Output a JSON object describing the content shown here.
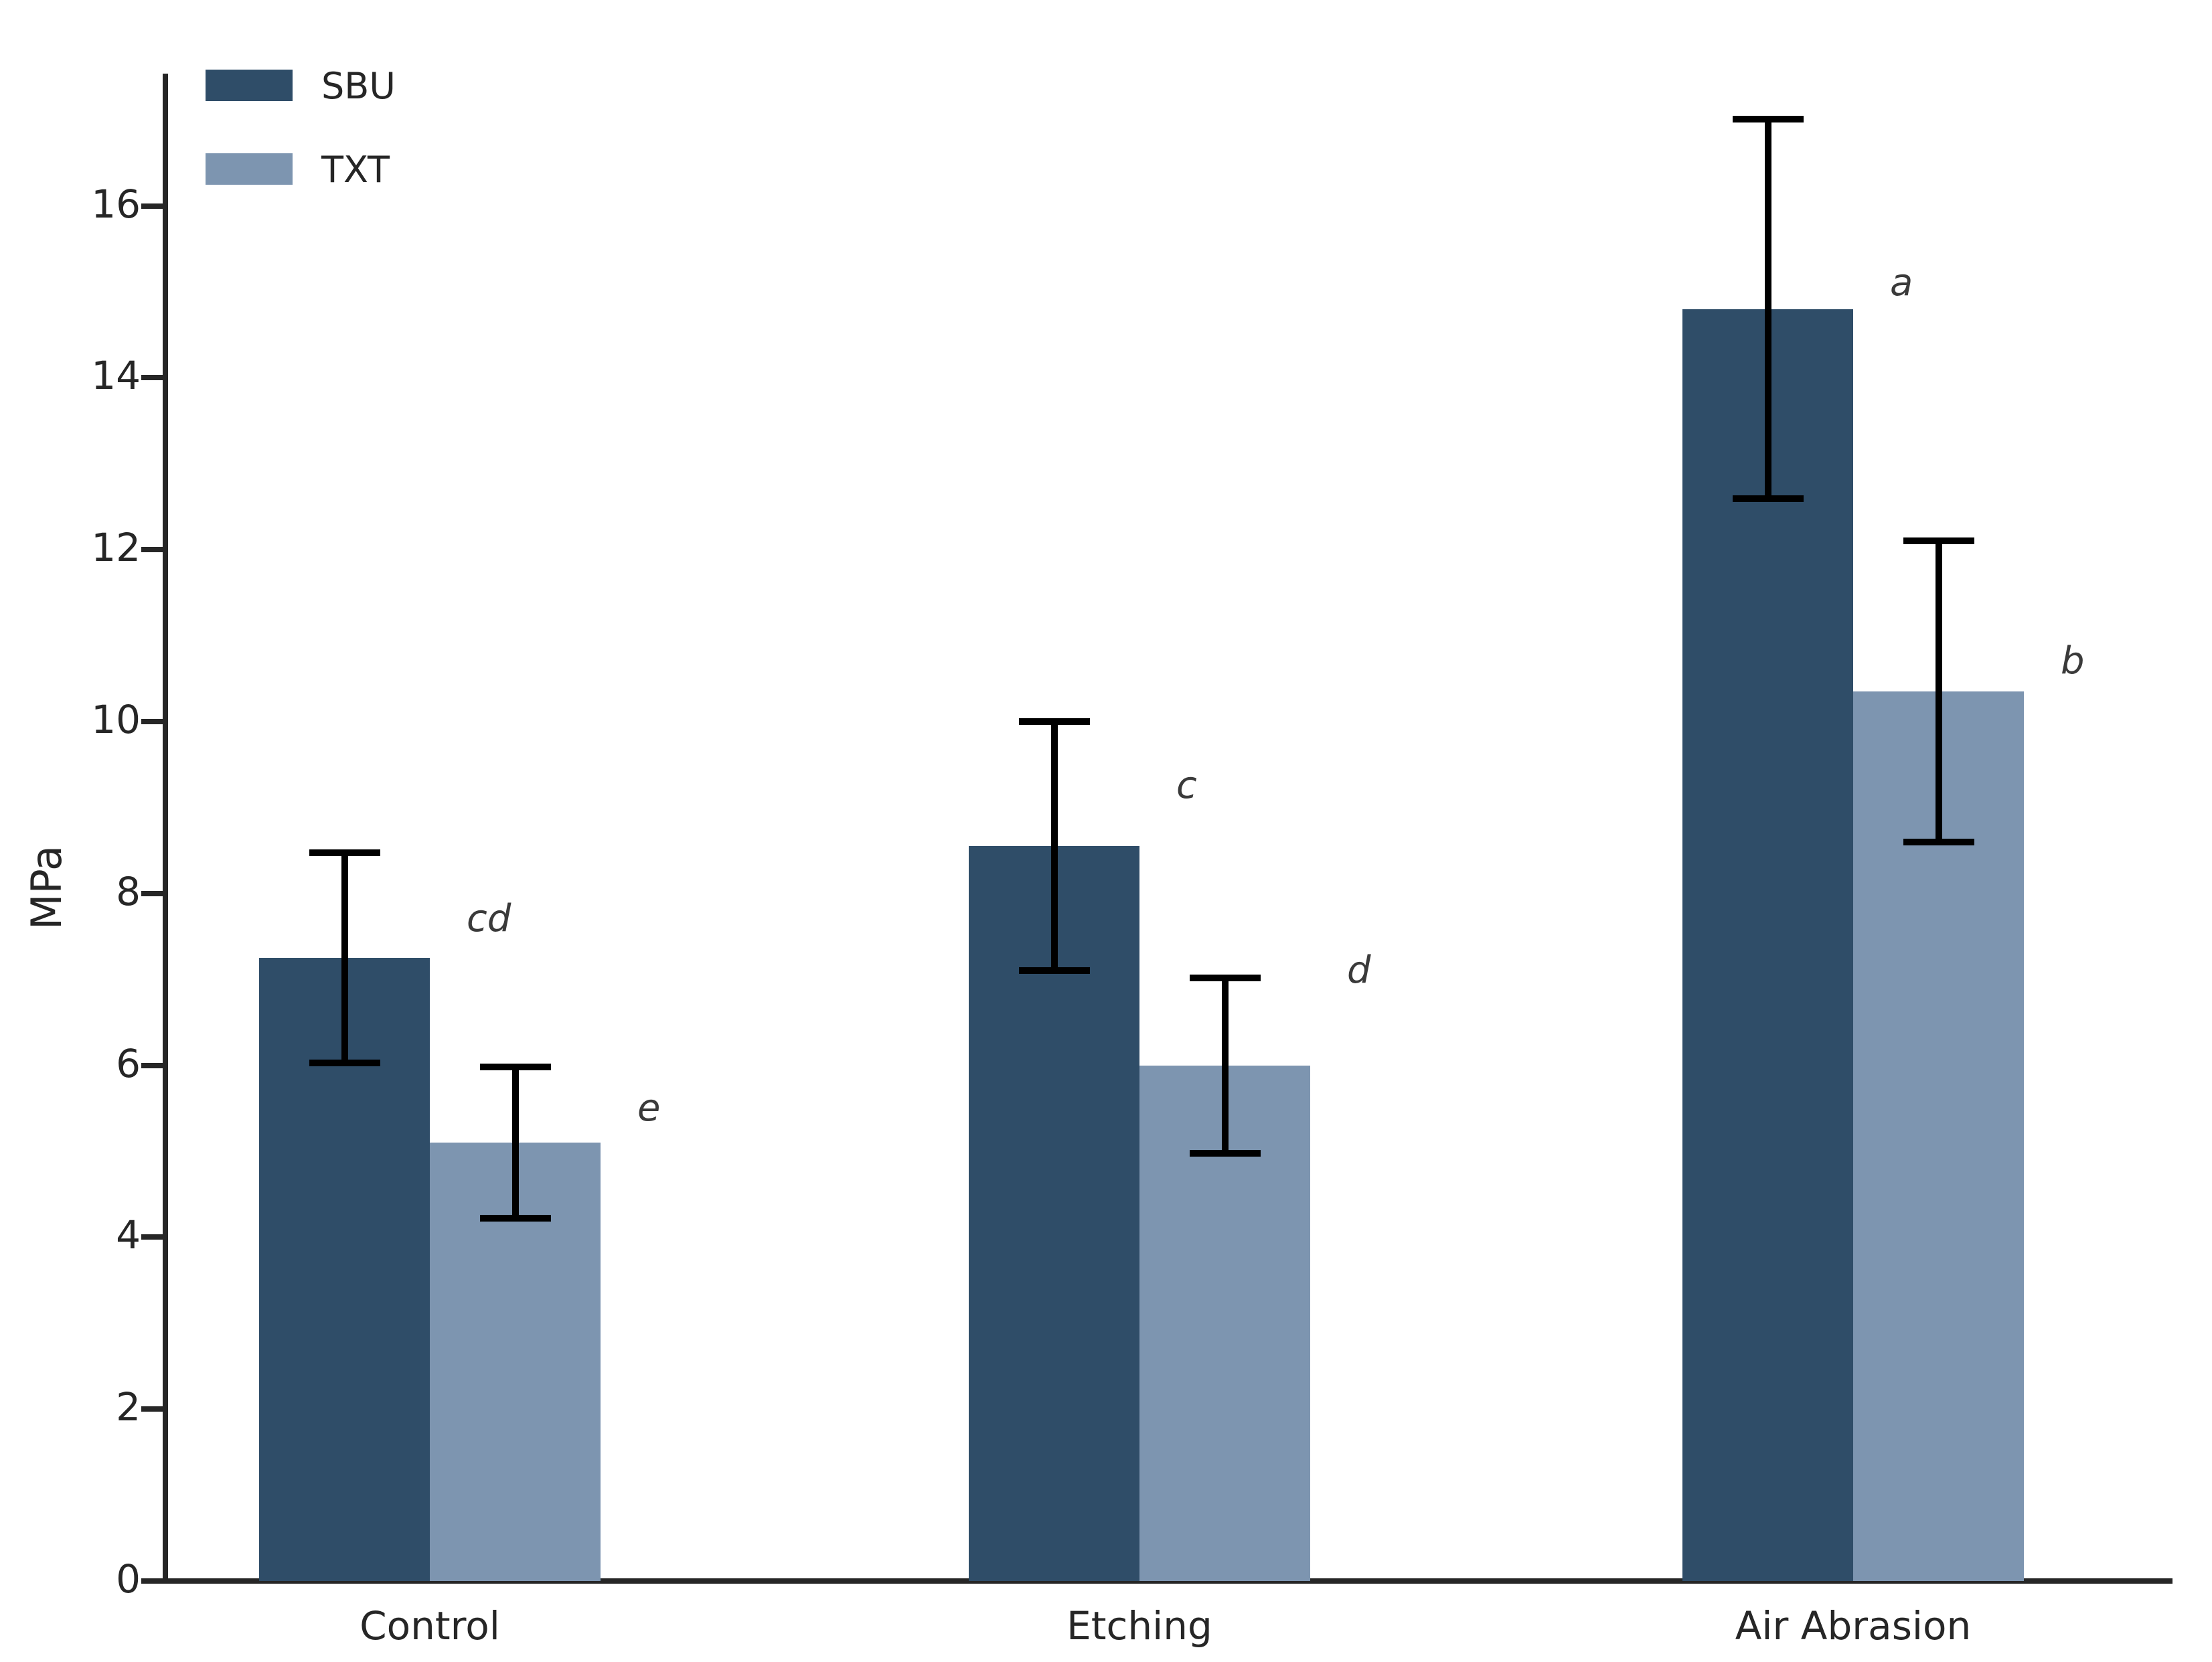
{
  "chart_data": {
    "type": "bar",
    "title": "",
    "ylabel": "MPa",
    "xlabel": "",
    "categories": [
      "Control",
      "Etching",
      "Air Abrasion"
    ],
    "series": [
      {
        "name": "SBU",
        "color": "#2f4d68",
        "values": [
          7.25,
          8.55,
          14.8
        ],
        "errors": [
          1.22,
          1.45,
          2.21
        ],
        "letters": [
          {
            "text": "cd",
            "y": 7.7
          },
          {
            "text": "c",
            "y": 9.25
          },
          {
            "text": "a",
            "y": 15.1
          }
        ]
      },
      {
        "name": "TXT",
        "color": "#7d95b0",
        "values": [
          5.1,
          6.0,
          10.35
        ],
        "errors": [
          0.88,
          1.02,
          1.75
        ],
        "letters": [
          {
            "text": "e",
            "y": 5.5
          },
          {
            "text": "d",
            "y": 7.1
          },
          {
            "text": "b",
            "y": 10.7
          }
        ]
      }
    ],
    "ylim": [
      0,
      17.54
    ],
    "yticks": [
      0,
      2,
      4,
      6,
      8,
      10,
      12,
      14,
      16
    ],
    "grid": false,
    "legend_position": "upper-left",
    "error_bar_color": "#000000",
    "axis_color": "#262626",
    "background_color": "#ffffff"
  },
  "legend": {
    "items": [
      {
        "label": "SBU",
        "color": "#2f4d68"
      },
      {
        "label": "TXT",
        "color": "#7d95b0"
      }
    ]
  }
}
